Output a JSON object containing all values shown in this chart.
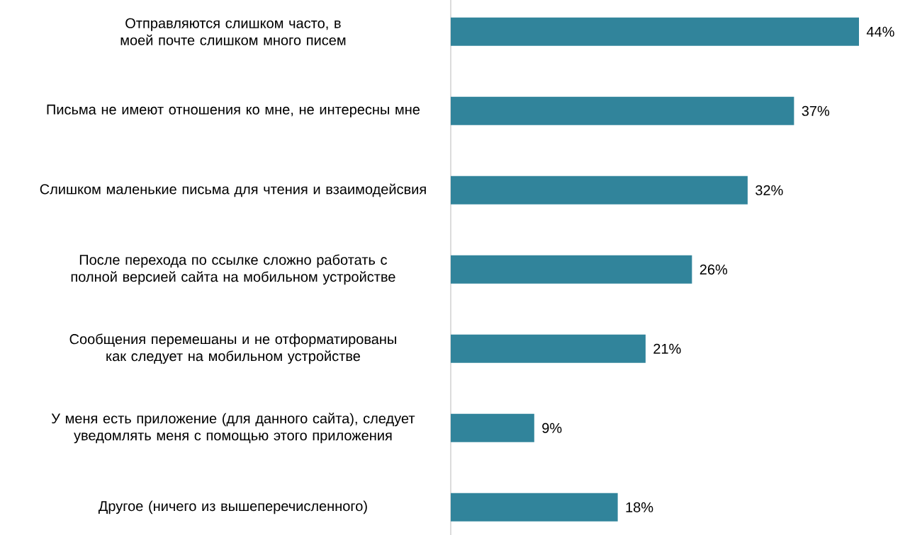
{
  "chart_data": {
    "type": "bar",
    "orientation": "horizontal",
    "categories": [
      "Отправляются слишком часто, в моей почте слишком много писем",
      "Письма не имеют отношения ко мне, не интересны мне",
      "Слишком маленькие письма для чтения и взаимодейсвия",
      "После перехода по ссылке сложно работать с полной версией сайта на мобильном устройстве",
      "Сообщения перемешаны и не отформатированы как следует на мобильном устройстве",
      "У меня есть приложение (для данного сайта), следует уведомлять меня с помощью этого приложения",
      "Другое (ничего из вышеперечисленного)"
    ],
    "values": [
      44,
      37,
      32,
      26,
      21,
      9,
      18
    ],
    "value_labels": [
      "44%",
      "37%",
      "32%",
      "26%",
      "21%",
      "9%",
      "18%"
    ],
    "color": "#31849b"
  }
}
